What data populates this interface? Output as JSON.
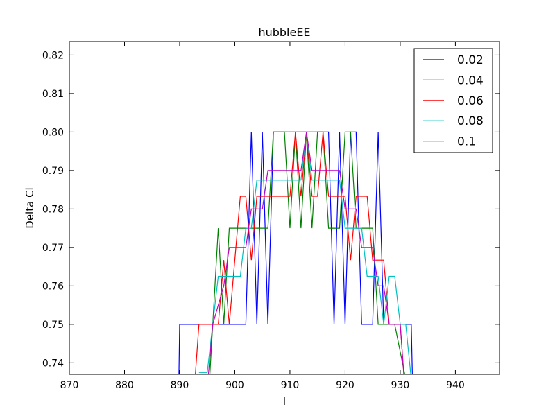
{
  "chart_data": {
    "type": "line",
    "title": "hubbleEE",
    "xlabel": "l",
    "ylabel": "Delta Cl",
    "xlim": [
      870,
      948
    ],
    "ylim": [
      0.737,
      0.8235
    ],
    "xticks": [
      870,
      880,
      890,
      900,
      910,
      920,
      930,
      940
    ],
    "yticks": [
      0.74,
      0.75,
      0.76,
      0.77,
      0.78,
      0.79,
      0.8,
      0.81,
      0.82
    ],
    "ytick_labels": [
      "0.74",
      "0.75",
      "0.76",
      "0.77",
      "0.78",
      "0.79",
      "0.80",
      "0.81",
      "0.82"
    ],
    "grid": false,
    "legend_position": "top-right",
    "series": [
      {
        "name": "0.02",
        "color": "#0000ff",
        "points": [
          [
            889.8,
            0.73
          ],
          [
            890,
            0.75
          ],
          [
            902,
            0.75
          ],
          [
            903,
            0.8
          ],
          [
            904,
            0.75
          ],
          [
            905,
            0.8
          ],
          [
            906,
            0.75
          ],
          [
            907,
            0.8
          ],
          [
            917,
            0.8
          ],
          [
            918,
            0.75
          ],
          [
            919,
            0.8
          ],
          [
            920,
            0.75
          ],
          [
            921,
            0.8
          ],
          [
            922,
            0.8
          ],
          [
            923,
            0.75
          ],
          [
            925,
            0.75
          ],
          [
            926,
            0.8
          ],
          [
            927,
            0.75
          ],
          [
            932,
            0.75
          ],
          [
            932.3,
            0.73
          ]
        ]
      },
      {
        "name": "0.04",
        "color": "#008000",
        "points": [
          [
            895.2,
            0.73
          ],
          [
            896,
            0.75
          ],
          [
            897,
            0.775
          ],
          [
            898,
            0.75
          ],
          [
            899,
            0.775
          ],
          [
            906,
            0.775
          ],
          [
            907,
            0.8
          ],
          [
            909,
            0.8
          ],
          [
            910,
            0.775
          ],
          [
            911,
            0.8
          ],
          [
            912,
            0.775
          ],
          [
            913,
            0.8
          ],
          [
            914,
            0.775
          ],
          [
            915,
            0.8
          ],
          [
            916,
            0.8
          ],
          [
            917,
            0.775
          ],
          [
            919,
            0.775
          ],
          [
            920,
            0.8
          ],
          [
            921,
            0.8
          ],
          [
            922,
            0.775
          ],
          [
            925,
            0.775
          ],
          [
            926,
            0.75
          ],
          [
            929,
            0.75
          ],
          [
            931.8,
            0.73
          ]
        ]
      },
      {
        "name": "0.06",
        "color": "#ff0000",
        "points": [
          [
            892.5,
            0.73
          ],
          [
            893.5,
            0.75
          ],
          [
            897,
            0.75
          ],
          [
            898,
            0.7667
          ],
          [
            899,
            0.75
          ],
          [
            900,
            0.7667
          ],
          [
            901,
            0.7833
          ],
          [
            902,
            0.7833
          ],
          [
            903,
            0.7667
          ],
          [
            904,
            0.7833
          ],
          [
            910,
            0.7833
          ],
          [
            911,
            0.8
          ],
          [
            912,
            0.7833
          ],
          [
            913,
            0.8
          ],
          [
            914,
            0.7833
          ],
          [
            915,
            0.7833
          ],
          [
            916,
            0.8
          ],
          [
            917,
            0.7833
          ],
          [
            920,
            0.7833
          ],
          [
            921,
            0.7667
          ],
          [
            922,
            0.7833
          ],
          [
            924,
            0.7833
          ],
          [
            925,
            0.7667
          ],
          [
            927,
            0.7667
          ],
          [
            928,
            0.75
          ],
          [
            930,
            0.75
          ],
          [
            931,
            0.73
          ]
        ]
      },
      {
        "name": "0.08",
        "color": "#00bfbf",
        "points": [
          [
            893.5,
            0.7375
          ],
          [
            895,
            0.7375
          ],
          [
            896,
            0.75
          ],
          [
            897,
            0.7625
          ],
          [
            901,
            0.7625
          ],
          [
            902,
            0.775
          ],
          [
            903,
            0.775
          ],
          [
            904,
            0.7875
          ],
          [
            911,
            0.7875
          ],
          [
            912,
            0.7875
          ],
          [
            913,
            0.8
          ],
          [
            914,
            0.7875
          ],
          [
            919,
            0.7875
          ],
          [
            920,
            0.775
          ],
          [
            923,
            0.775
          ],
          [
            924,
            0.7625
          ],
          [
            926,
            0.7625
          ],
          [
            927,
            0.75
          ],
          [
            928,
            0.7625
          ],
          [
            929,
            0.7625
          ],
          [
            930,
            0.75
          ],
          [
            931,
            0.75
          ],
          [
            932.4,
            0.73
          ]
        ]
      },
      {
        "name": "0.1",
        "color": "#bf00bf",
        "points": [
          [
            894.8,
            0.73
          ],
          [
            896,
            0.75
          ],
          [
            898,
            0.76
          ],
          [
            899,
            0.77
          ],
          [
            902,
            0.77
          ],
          [
            903,
            0.78
          ],
          [
            905,
            0.78
          ],
          [
            906,
            0.79
          ],
          [
            912,
            0.79
          ],
          [
            913,
            0.8
          ],
          [
            914,
            0.79
          ],
          [
            919,
            0.79
          ],
          [
            920,
            0.78
          ],
          [
            922,
            0.78
          ],
          [
            923,
            0.77
          ],
          [
            925,
            0.77
          ],
          [
            926,
            0.76
          ],
          [
            927,
            0.76
          ],
          [
            928,
            0.75
          ],
          [
            930,
            0.75
          ],
          [
            931,
            0.73
          ]
        ]
      }
    ]
  }
}
